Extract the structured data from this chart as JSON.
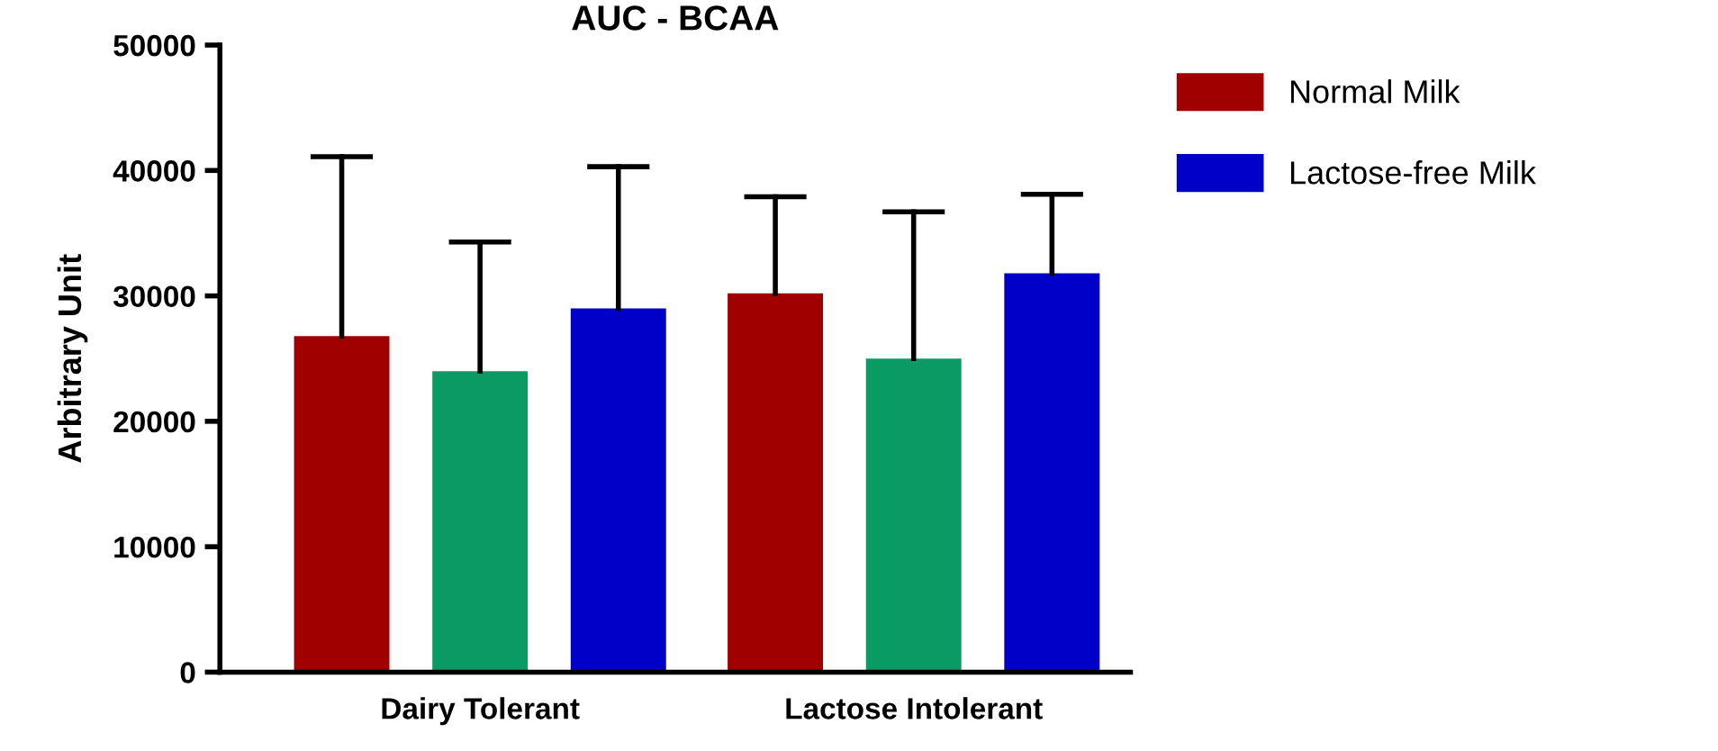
{
  "chart_data": {
    "type": "bar",
    "title": "AUC - BCAA",
    "ylabel": "Arbitrary Unit",
    "categories": [
      "Dairy Tolerant",
      "Lactose Intolerant"
    ],
    "series": [
      {
        "name": "Normal Milk",
        "color": "#a00000",
        "values": [
          26800,
          30200
        ],
        "errors": [
          14300,
          7700
        ]
      },
      {
        "color": "#0a9a64",
        "values": [
          24000,
          25000
        ],
        "errors": [
          10300,
          11700
        ]
      },
      {
        "name": "Lactose-free Milk",
        "color": "#0000c8",
        "values": [
          29000,
          31800
        ],
        "errors": [
          11300,
          6300
        ]
      }
    ],
    "ylim": [
      0,
      50000
    ],
    "yticks": [
      0,
      10000,
      20000,
      30000,
      40000,
      50000
    ],
    "grid": false,
    "legend": "right"
  }
}
